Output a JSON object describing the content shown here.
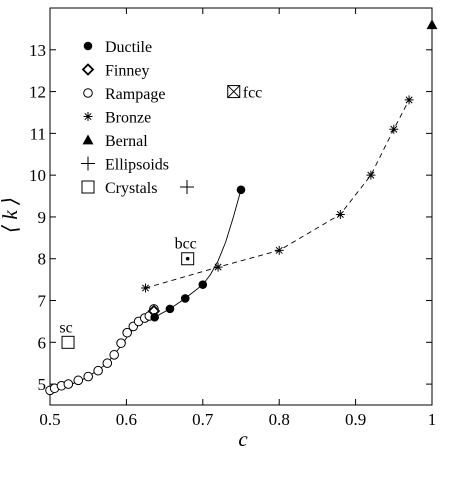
{
  "chart_data": {
    "type": "scatter",
    "title": "",
    "xlabel": "c",
    "ylabel": "⟨ k ⟩",
    "xlim": [
      0.5,
      1.0
    ],
    "ylim": [
      4.5,
      14.0
    ],
    "xticks": [
      0.5,
      0.6,
      0.7,
      0.8,
      0.9,
      1.0
    ],
    "xtick_labels": [
      "0.5",
      "0.6",
      "0.7",
      "0.8",
      "0.9",
      "1"
    ],
    "yticks": [
      5,
      6,
      7,
      8,
      9,
      10,
      11,
      12,
      13
    ],
    "ytick_labels": [
      "5",
      "6",
      "7",
      "8",
      "9",
      "10",
      "11",
      "12",
      "13"
    ],
    "grid": false,
    "legend_position": "top-left",
    "series": [
      {
        "name": "Ductile",
        "marker": "filled-circle",
        "x": [
          0.637,
          0.657,
          0.677,
          0.7,
          0.75
        ],
        "y": [
          6.6,
          6.8,
          7.05,
          7.38,
          9.65
        ]
      },
      {
        "name": "Finney",
        "marker": "diamond",
        "x": [
          0.636
        ],
        "y": [
          6.75
        ]
      },
      {
        "name": "Rampage",
        "marker": "open-circle",
        "x": [
          0.5,
          0.506,
          0.515,
          0.524,
          0.537,
          0.55,
          0.563,
          0.575,
          0.584,
          0.593,
          0.601,
          0.609,
          0.616,
          0.624,
          0.63,
          0.636
        ],
        "y": [
          4.85,
          4.9,
          4.96,
          5.0,
          5.09,
          5.18,
          5.32,
          5.5,
          5.7,
          5.98,
          6.23,
          6.38,
          6.5,
          6.58,
          6.63,
          6.8
        ]
      },
      {
        "name": "Bronze",
        "marker": "asterisk",
        "line": "dashed",
        "x": [
          0.625,
          0.72,
          0.8,
          0.88,
          0.92,
          0.95,
          0.97
        ],
        "y": [
          7.3,
          7.8,
          8.2,
          9.06,
          10.0,
          11.1,
          11.8
        ]
      },
      {
        "name": "Bernal",
        "marker": "filled-triangle",
        "x": [
          1.0
        ],
        "y": [
          13.6
        ]
      },
      {
        "name": "Ellipsoids",
        "marker": "plus",
        "x": [],
        "y": []
      },
      {
        "name": "Crystals",
        "marker": "open-square",
        "points": [
          {
            "label": "sc",
            "x": 0.5236,
            "y": 6.0,
            "variant": "plain"
          },
          {
            "label": "bcc",
            "x": 0.6802,
            "y": 8.0,
            "variant": "dot"
          },
          {
            "label": "fcc",
            "x": 0.7405,
            "y": 12.0,
            "variant": "cross"
          }
        ]
      }
    ],
    "solid_curve": {
      "x": [
        0.63,
        0.637,
        0.657,
        0.677,
        0.7,
        0.71,
        0.72,
        0.73,
        0.74,
        0.75
      ],
      "y": [
        6.55,
        6.6,
        6.8,
        7.05,
        7.38,
        7.62,
        7.95,
        8.4,
        9.0,
        9.65
      ]
    },
    "rampage_curve": {
      "x": [
        0.5,
        0.52,
        0.54,
        0.56,
        0.575,
        0.59,
        0.6,
        0.61,
        0.62,
        0.63,
        0.637
      ],
      "y": [
        4.83,
        4.95,
        5.08,
        5.3,
        5.5,
        5.85,
        6.1,
        6.35,
        6.5,
        6.58,
        6.62
      ]
    },
    "legend": [
      {
        "label": "Ductile",
        "marker": "filled-circle"
      },
      {
        "label": "Finney",
        "marker": "diamond"
      },
      {
        "label": "Rampage",
        "marker": "open-circle"
      },
      {
        "label": "Bronze",
        "marker": "asterisk"
      },
      {
        "label": "Bernal",
        "marker": "filled-triangle"
      },
      {
        "label": "Ellipsoids",
        "marker": "plus"
      },
      {
        "label": "Crystals",
        "marker": "open-square"
      }
    ]
  }
}
